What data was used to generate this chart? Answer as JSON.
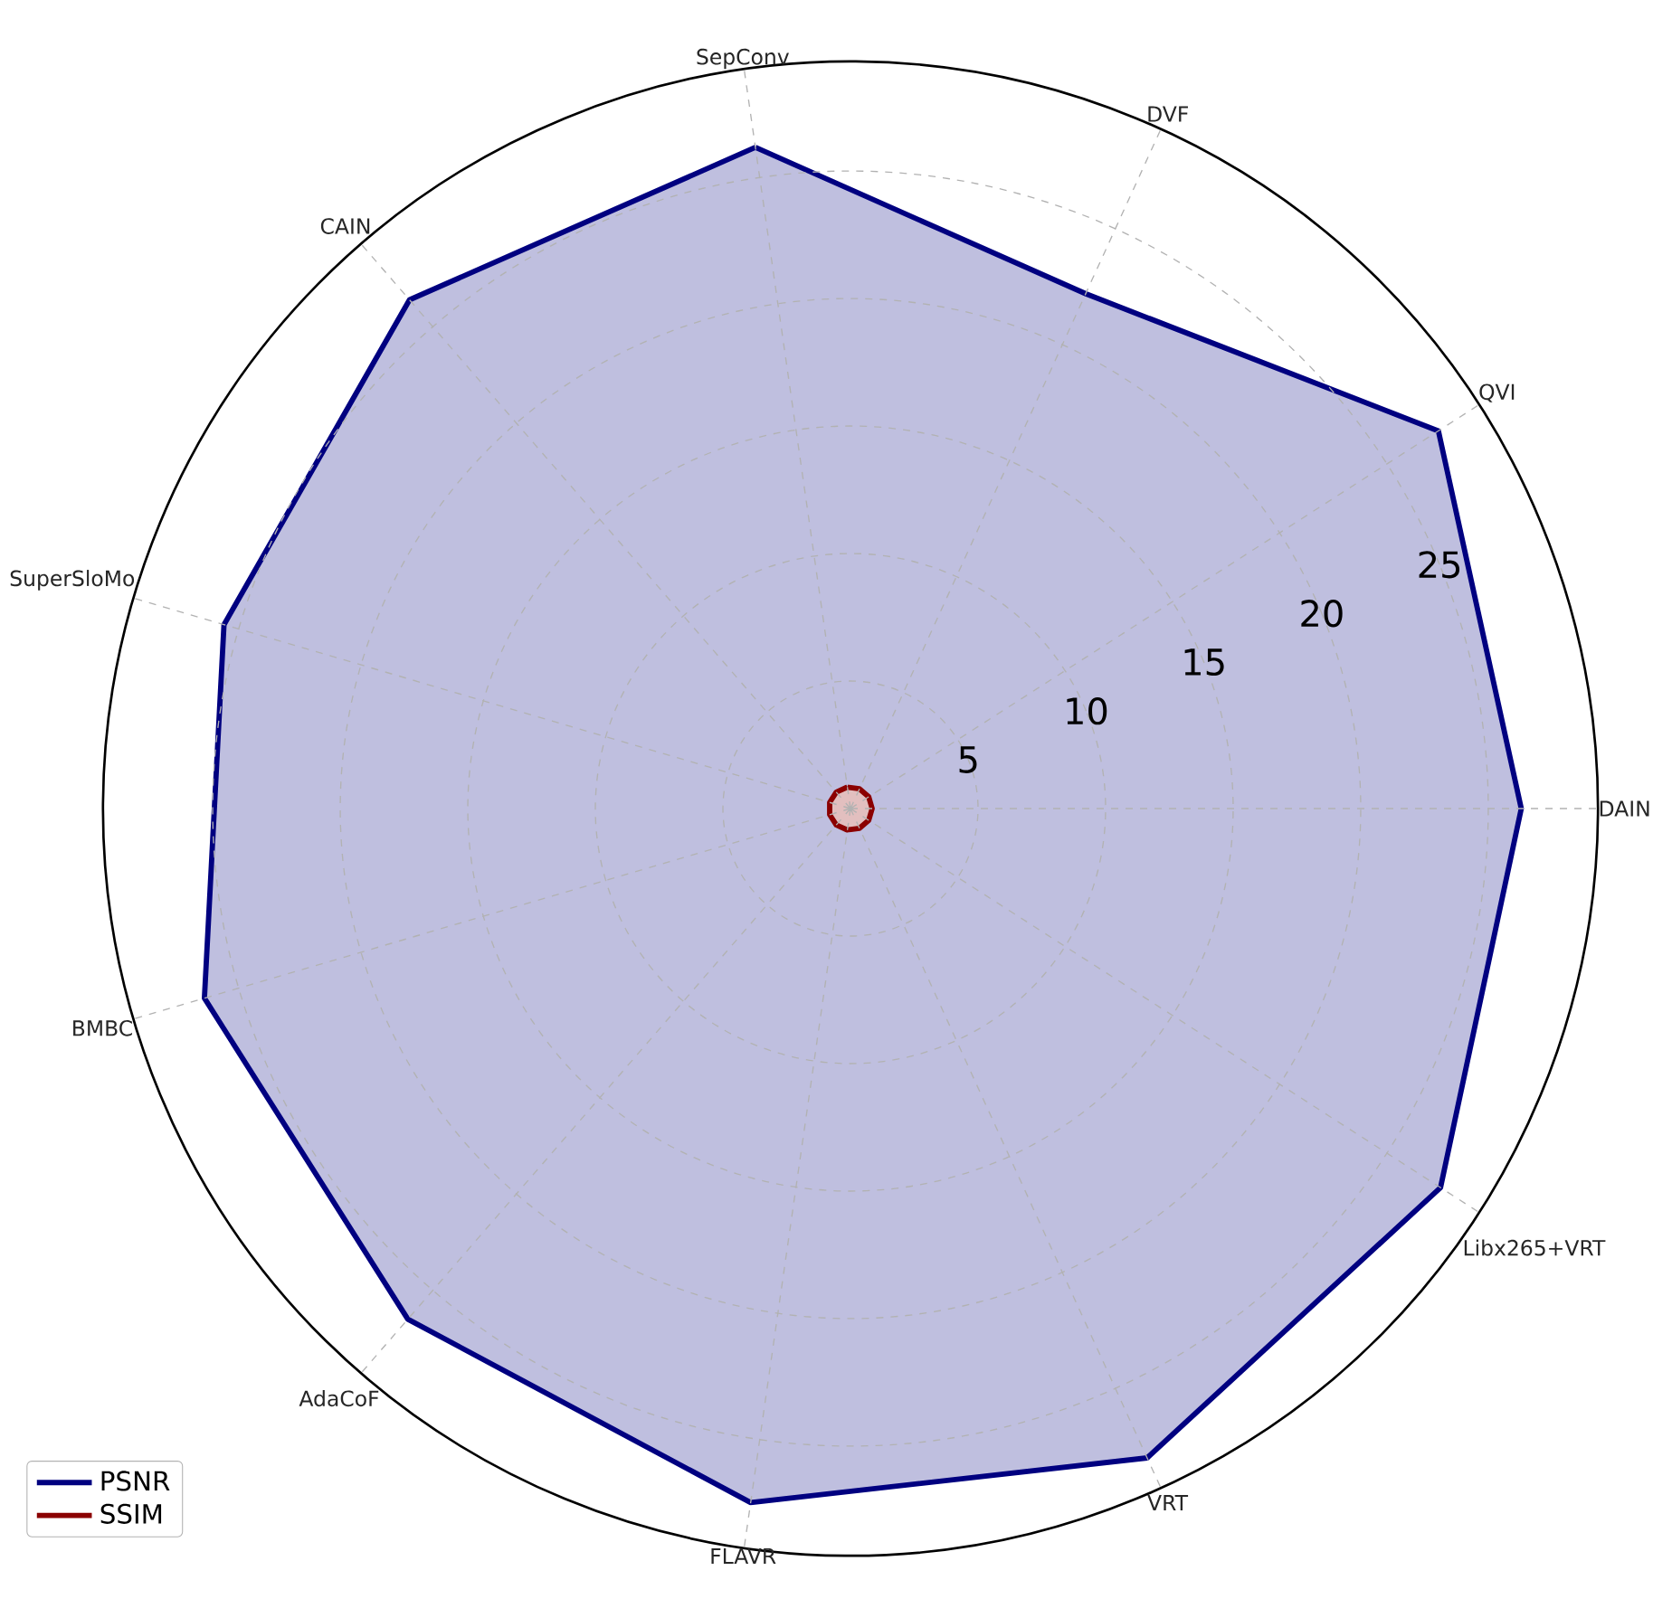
{
  "chart_data": {
    "type": "radar",
    "categories": [
      "SepConv",
      "DVF",
      "QVI",
      "DAIN",
      "Libx265+VRT",
      "VRT",
      "FLAVR",
      "AdaCoF",
      "BMBC",
      "SuperSloMo",
      "CAIN"
    ],
    "series": [
      {
        "name": "PSNR",
        "color": "#000080",
        "values": [
          26.2,
          22.2,
          27.4,
          26.3,
          27.5,
          28.0,
          27.5,
          26.5,
          26.4,
          25.6,
          26.4
        ]
      },
      {
        "name": "SSIM",
        "color": "#8b0000",
        "values": [
          0.85,
          0.85,
          0.85,
          0.85,
          0.85,
          0.85,
          0.85,
          0.85,
          0.85,
          0.85,
          0.85
        ]
      }
    ],
    "ylim": [
      0,
      29.3
    ],
    "yticks": [
      5,
      10,
      15,
      20,
      25
    ],
    "grid": true,
    "legend": "bottom left"
  }
}
